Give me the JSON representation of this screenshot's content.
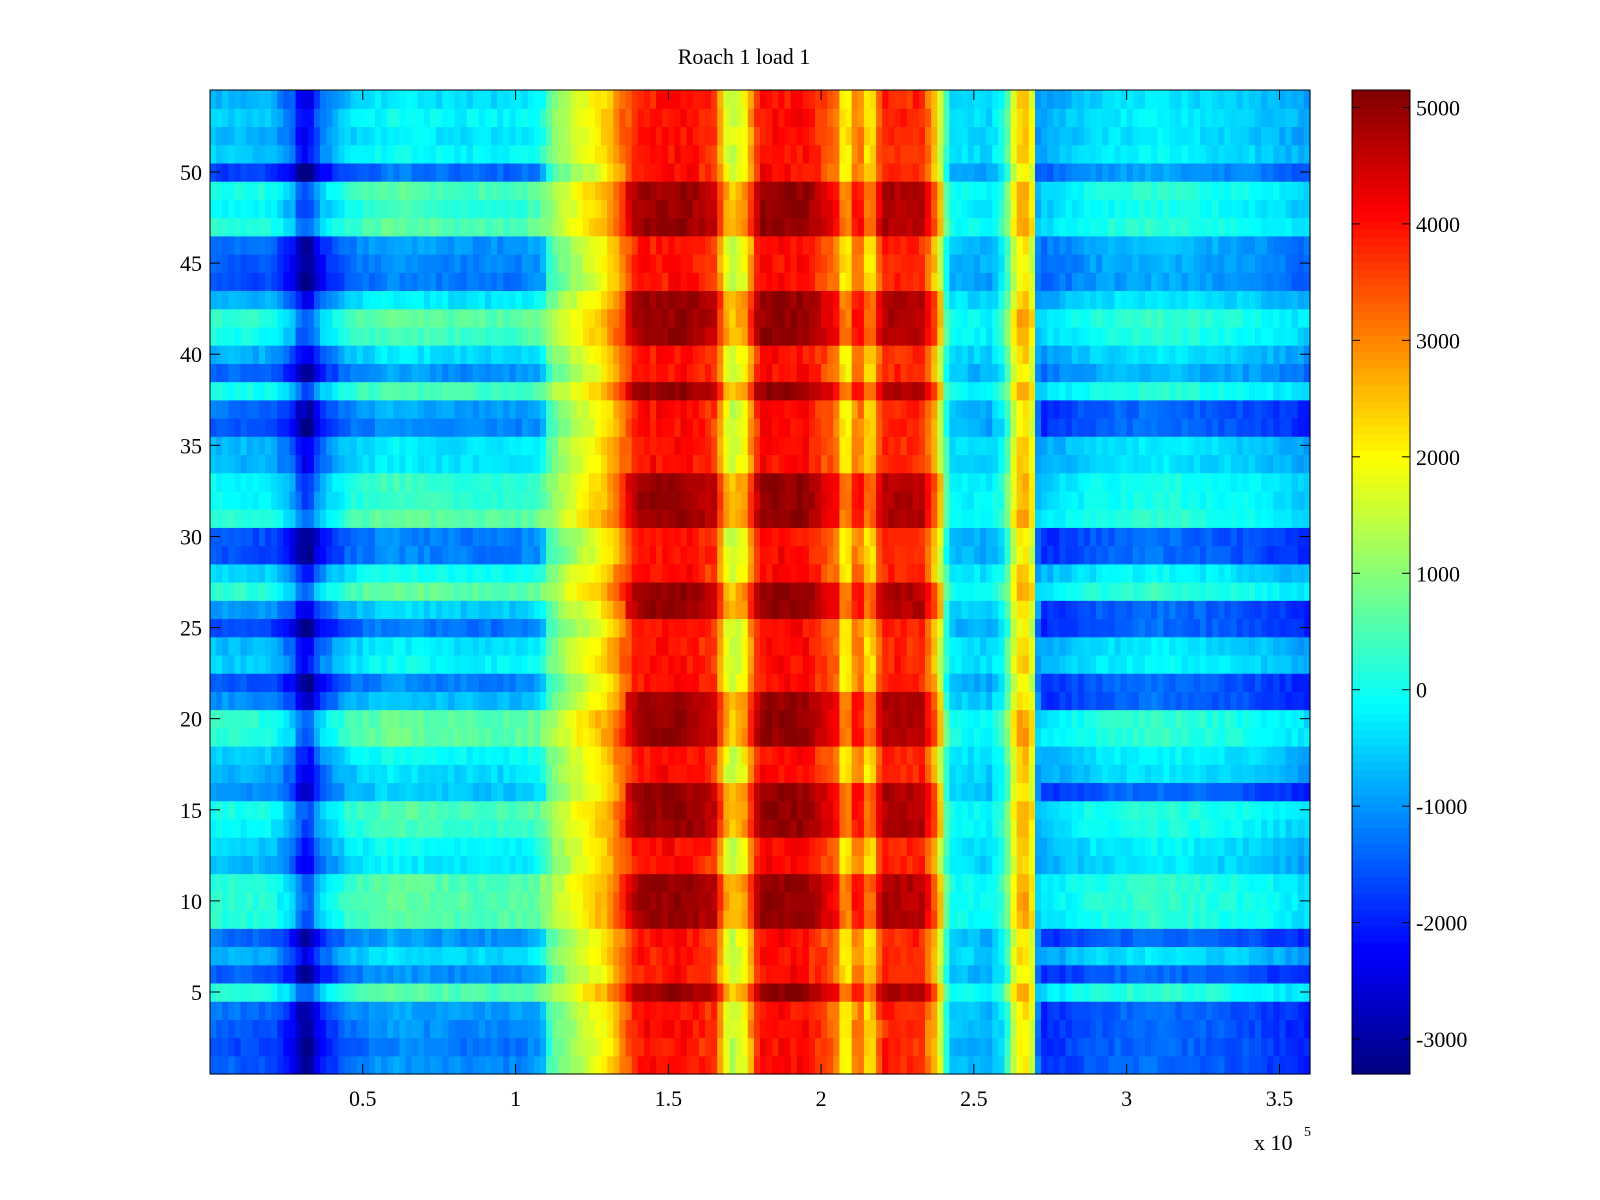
{
  "chart_data": {
    "type": "heatmap",
    "title": "Roach 1 load 1",
    "xlabel": "",
    "ylabel": "",
    "x_scale_label": "x 10",
    "x_scale_exponent": "5",
    "xlim": [
      0,
      3.6
    ],
    "ylim": [
      0.5,
      54.5
    ],
    "x_ticks": [
      0.5,
      1,
      1.5,
      2,
      2.5,
      3,
      3.5
    ],
    "x_tick_labels": [
      "0.5",
      "1",
      "1.5",
      "2",
      "2.5",
      "3",
      "3.5"
    ],
    "y_ticks": [
      5,
      10,
      15,
      20,
      25,
      30,
      35,
      40,
      45,
      50
    ],
    "y_tick_labels": [
      "5",
      "10",
      "15",
      "20",
      "25",
      "30",
      "35",
      "40",
      "45",
      "50"
    ],
    "rows": 54,
    "colormap": "jet",
    "clim": [
      -3300,
      5150
    ],
    "colorbar_ticks": [
      5000,
      4000,
      3000,
      2000,
      1000,
      0,
      -1000,
      -2000,
      -3000
    ],
    "colorbar_tick_labels": [
      "5000",
      "4000",
      "3000",
      "2000",
      "1000",
      "0",
      "-1000",
      "-2000",
      "-3000"
    ],
    "grid": false,
    "column_profile": [
      {
        "x": 0.0,
        "value": -600
      },
      {
        "x": 0.2,
        "value": -700
      },
      {
        "x": 0.27,
        "value": -1400
      },
      {
        "x": 0.3,
        "value": -2300
      },
      {
        "x": 0.33,
        "value": -2200
      },
      {
        "x": 0.36,
        "value": -1300
      },
      {
        "x": 0.45,
        "value": -500
      },
      {
        "x": 0.6,
        "value": -100
      },
      {
        "x": 0.8,
        "value": -300
      },
      {
        "x": 1.0,
        "value": -300
      },
      {
        "x": 1.08,
        "value": -100
      },
      {
        "x": 1.12,
        "value": 900
      },
      {
        "x": 1.2,
        "value": 1600
      },
      {
        "x": 1.3,
        "value": 2400
      },
      {
        "x": 1.4,
        "value": 4200
      },
      {
        "x": 1.55,
        "value": 4300
      },
      {
        "x": 1.65,
        "value": 3900
      },
      {
        "x": 1.7,
        "value": 1600
      },
      {
        "x": 1.75,
        "value": 2200
      },
      {
        "x": 1.8,
        "value": 4300
      },
      {
        "x": 1.95,
        "value": 4300
      },
      {
        "x": 2.05,
        "value": 3400
      },
      {
        "x": 2.08,
        "value": 1900
      },
      {
        "x": 2.12,
        "value": 3700
      },
      {
        "x": 2.16,
        "value": 2100
      },
      {
        "x": 2.2,
        "value": 4100
      },
      {
        "x": 2.33,
        "value": 4000
      },
      {
        "x": 2.38,
        "value": 2500
      },
      {
        "x": 2.42,
        "value": -300
      },
      {
        "x": 2.55,
        "value": -500
      },
      {
        "x": 2.6,
        "value": 100
      },
      {
        "x": 2.63,
        "value": 1700
      },
      {
        "x": 2.66,
        "value": 2700
      },
      {
        "x": 2.69,
        "value": 1900
      },
      {
        "x": 2.71,
        "value": -900
      },
      {
        "x": 2.9,
        "value": -400
      },
      {
        "x": 3.1,
        "value": -200
      },
      {
        "x": 3.4,
        "value": -500
      },
      {
        "x": 3.6,
        "value": -900
      }
    ],
    "cold_rows": [
      1,
      2,
      3,
      4,
      6,
      8,
      16,
      21,
      22,
      25,
      26,
      29,
      30,
      36,
      37,
      39,
      43,
      44,
      45,
      46,
      50
    ],
    "hot_rows": [
      5,
      9,
      10,
      11,
      14,
      15,
      16,
      19,
      20,
      21,
      26,
      27,
      31,
      32,
      33,
      38,
      41,
      42,
      43,
      47,
      48,
      49
    ]
  }
}
